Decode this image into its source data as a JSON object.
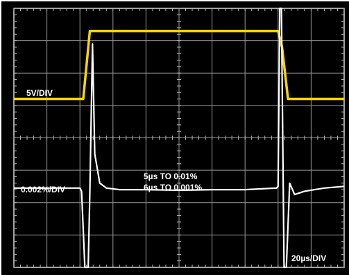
{
  "chart_data": {
    "type": "line",
    "title": "",
    "xlabel": "",
    "ylabel": "",
    "grid": true,
    "divisions": {
      "x": 10,
      "y": 8
    },
    "time_per_div_label": "20µs/DIV",
    "annotations": [
      "5µs TO 0.01%",
      "6µs TO 0.001%"
    ],
    "series": [
      {
        "name": "",
        "channel_label": "5V/DIV",
        "color": "#ffd400",
        "x_div": [
          0.0,
          2.1,
          2.3,
          8.0,
          8.12,
          8.3,
          10.0
        ],
        "y_div": [
          5.2,
          5.2,
          7.3,
          7.3,
          6.8,
          5.2,
          5.2
        ]
      },
      {
        "name": "",
        "channel_label": "0.002%/DIV",
        "color": "#ffffff",
        "x_div": [
          0.0,
          2.0,
          2.05,
          2.15,
          2.25,
          2.3,
          2.38,
          2.45,
          2.6,
          2.8,
          3.2,
          4.0,
          5.0,
          6.0,
          7.0,
          7.95,
          8.0,
          8.05,
          8.1,
          8.18,
          8.25,
          8.35,
          8.5,
          8.8,
          9.4,
          10.0
        ],
        "y_div": [
          2.45,
          2.45,
          2.35,
          0.0,
          0.0,
          2.3,
          6.9,
          3.5,
          2.6,
          2.45,
          2.4,
          2.4,
          2.38,
          2.4,
          2.4,
          2.45,
          2.5,
          8.0,
          8.0,
          0.0,
          0.0,
          2.6,
          2.25,
          2.35,
          2.45,
          2.5
        ]
      }
    ]
  }
}
